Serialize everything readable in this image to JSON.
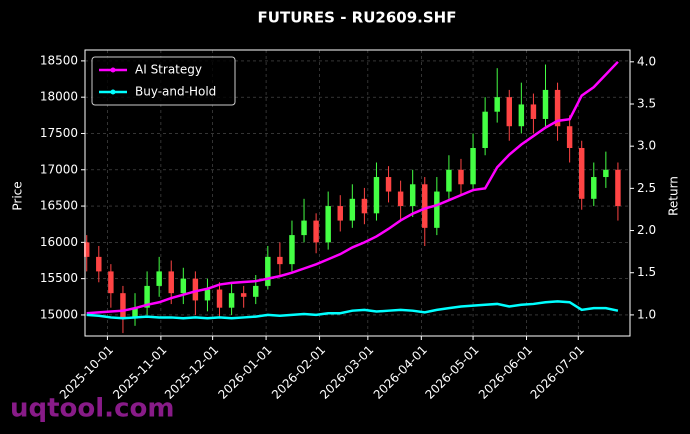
{
  "chart_data": {
    "type": "candlestick",
    "title": "FUTURES - RU2609.SHF",
    "y_label": "Price",
    "y2_label": "Return",
    "watermark": "uqtool.com",
    "x": [
      "2025-09-19",
      "2025-09-26",
      "2025-10-03",
      "2025-10-10",
      "2025-10-17",
      "2025-10-24",
      "2025-10-31",
      "2025-11-07",
      "2025-11-14",
      "2025-11-21",
      "2025-11-28",
      "2025-12-05",
      "2025-12-12",
      "2025-12-19",
      "2025-12-26",
      "2026-01-02",
      "2026-01-09",
      "2026-01-16",
      "2026-01-23",
      "2026-01-30",
      "2026-02-06",
      "2026-02-13",
      "2026-02-20",
      "2026-02-27",
      "2026-03-06",
      "2026-03-13",
      "2026-03-20",
      "2026-03-27",
      "2026-04-03",
      "2026-04-10",
      "2026-04-17",
      "2026-04-24",
      "2026-05-01",
      "2026-05-08",
      "2026-05-15",
      "2026-05-22",
      "2026-05-29",
      "2026-06-05",
      "2026-06-12",
      "2026-06-19",
      "2026-06-26",
      "2026-07-03",
      "2026-07-10",
      "2026-07-17",
      "2026-07-24"
    ],
    "open": [
      16000,
      15800,
      15600,
      15300,
      14950,
      15100,
      15400,
      15600,
      15300,
      15500,
      15200,
      15350,
      15100,
      15300,
      15250,
      15400,
      15800,
      15700,
      16100,
      16300,
      16000,
      16500,
      16300,
      16600,
      16400,
      16900,
      16700,
      16500,
      16800,
      16200,
      16700,
      17000,
      16800,
      17300,
      17800,
      18000,
      17600,
      17900,
      17700,
      18100,
      17600,
      17300,
      16600,
      16900,
      17000
    ],
    "high": [
      16100,
      15950,
      15700,
      15400,
      15300,
      15600,
      15800,
      15750,
      15650,
      15600,
      15500,
      15450,
      15450,
      15400,
      15550,
      15950,
      16000,
      16300,
      16600,
      16400,
      16700,
      16650,
      16800,
      16750,
      17100,
      17050,
      16850,
      17000,
      16900,
      16900,
      17200,
      17150,
      17500,
      18000,
      18400,
      18100,
      18200,
      18050,
      18450,
      18200,
      17750,
      17400,
      17100,
      17250,
      17100
    ],
    "low": [
      15600,
      15450,
      15100,
      14750,
      14850,
      15000,
      15250,
      15150,
      15150,
      15000,
      15050,
      14950,
      15000,
      15100,
      15150,
      15350,
      15550,
      15600,
      16000,
      15850,
      15900,
      16150,
      16200,
      16250,
      16300,
      16550,
      16300,
      16350,
      15950,
      16100,
      16600,
      16650,
      16700,
      17200,
      17650,
      17400,
      17500,
      17500,
      17600,
      17400,
      17100,
      16450,
      16500,
      16750,
      16300
    ],
    "close": [
      15800,
      15600,
      15300,
      14950,
      15100,
      15400,
      15600,
      15300,
      15500,
      15200,
      15350,
      15100,
      15300,
      15250,
      15400,
      15800,
      15700,
      16100,
      16300,
      16000,
      16500,
      16300,
      16600,
      16400,
      16900,
      16700,
      16500,
      16800,
      16200,
      16700,
      17000,
      16800,
      17300,
      17800,
      18000,
      17600,
      17900,
      17700,
      18100,
      17600,
      17300,
      16600,
      16900,
      17000,
      16500
    ],
    "up_color": "#44ff44",
    "down_color": "#ff4444",
    "series": [
      {
        "name": "AI Strategy",
        "color": "#ff00ff",
        "axis": "y2",
        "values": [
          1.02,
          1.03,
          1.04,
          1.05,
          1.08,
          1.12,
          1.15,
          1.2,
          1.24,
          1.28,
          1.31,
          1.36,
          1.38,
          1.39,
          1.4,
          1.43,
          1.46,
          1.5,
          1.55,
          1.6,
          1.66,
          1.72,
          1.8,
          1.86,
          1.93,
          2.02,
          2.12,
          2.2,
          2.26,
          2.3,
          2.36,
          2.42,
          2.48,
          2.5,
          2.75,
          2.9,
          3.02,
          3.12,
          3.22,
          3.3,
          3.32,
          3.6,
          3.7,
          3.85,
          4.0
        ]
      },
      {
        "name": "Buy-and-Hold",
        "color": "#00ffff",
        "axis": "y2",
        "values": [
          1.0,
          0.99,
          0.97,
          0.96,
          0.97,
          0.98,
          0.97,
          0.97,
          0.96,
          0.97,
          0.96,
          0.97,
          0.96,
          0.97,
          0.98,
          1.0,
          0.99,
          1.0,
          1.01,
          1.0,
          1.02,
          1.02,
          1.05,
          1.06,
          1.04,
          1.05,
          1.06,
          1.05,
          1.03,
          1.06,
          1.08,
          1.1,
          1.11,
          1.12,
          1.13,
          1.1,
          1.12,
          1.13,
          1.15,
          1.16,
          1.15,
          1.06,
          1.08,
          1.08,
          1.05
        ]
      }
    ],
    "xlim": [
      "2025-09-18",
      "2026-07-31"
    ],
    "xticks": [
      "2025-10-01",
      "2025-11-01",
      "2025-12-01",
      "2026-01-01",
      "2026-02-01",
      "2026-03-01",
      "2026-04-01",
      "2026-05-01",
      "2026-06-01",
      "2026-07-01"
    ],
    "ylim": [
      14710,
      18650
    ],
    "yticks": [
      15000,
      15500,
      16000,
      16500,
      17000,
      17500,
      18000,
      18500
    ],
    "y2lim": [
      0.75,
      4.14
    ],
    "y2ticks": [
      {
        "value": 1,
        "label": "1.0"
      },
      {
        "value": 1.5,
        "label": "1.5"
      },
      {
        "value": 2,
        "label": "2.0"
      },
      {
        "value": 2.5,
        "label": "2.5"
      },
      {
        "value": 3,
        "label": "3.0"
      },
      {
        "value": 3.5,
        "label": "3.5"
      },
      {
        "value": 4,
        "label": "4.0"
      }
    ],
    "grid": true,
    "legend": "upper left"
  }
}
